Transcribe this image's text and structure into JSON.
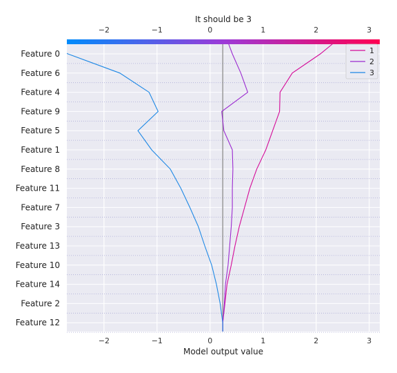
{
  "chart_data": {
    "type": "line",
    "title": "It should be 3",
    "xlabel": "Model output value",
    "ylabel": "",
    "xlim": [
      -2.7,
      3.2
    ],
    "xticks": [
      -2,
      -1,
      0,
      1,
      2,
      3
    ],
    "xtick_labels": [
      "−2",
      "−1",
      "0",
      "1",
      "2",
      "3"
    ],
    "base_value": 0.24,
    "features": [
      "Feature 0",
      "Feature 6",
      "Feature 4",
      "Feature 9",
      "Feature 5",
      "Feature 1",
      "Feature 8",
      "Feature 11",
      "Feature 7",
      "Feature 3",
      "Feature 13",
      "Feature 10",
      "Feature 14",
      "Feature 2",
      "Feature 12"
    ],
    "legend_position": "top-right",
    "grid": true,
    "colorbar": {
      "colors": [
        "#008bfb",
        "#9c3ad8",
        "#ff0052"
      ]
    },
    "series": [
      {
        "name": "1",
        "color": "#d40a98",
        "values": [
          2.08,
          1.55,
          1.32,
          1.31,
          1.18,
          1.05,
          0.88,
          0.75,
          0.65,
          0.55,
          0.47,
          0.4,
          0.32,
          0.28,
          0.24
        ]
      },
      {
        "name": "2",
        "color": "#9b2ad0",
        "values": [
          0.42,
          0.58,
          0.71,
          0.22,
          0.26,
          0.42,
          0.43,
          0.42,
          0.42,
          0.4,
          0.37,
          0.34,
          0.29,
          0.27,
          0.24
        ]
      },
      {
        "name": "3",
        "color": "#1e88e5",
        "values": [
          -2.68,
          -1.7,
          -1.15,
          -0.98,
          -1.36,
          -1.1,
          -0.75,
          -0.55,
          -0.38,
          -0.22,
          -0.1,
          0.03,
          0.12,
          0.19,
          0.24
        ]
      }
    ]
  }
}
